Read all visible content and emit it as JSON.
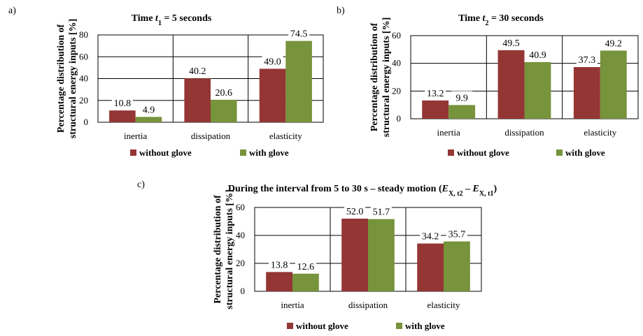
{
  "colors": {
    "without": "#943634",
    "with": "#77933c"
  },
  "chart_data": [
    {
      "type": "bar",
      "panel": "a)",
      "title_parts": [
        {
          "t": "Time "
        },
        {
          "t": "t",
          "i": true
        },
        {
          "t": "1",
          "sub": true
        },
        {
          "t": " = 5 seconds"
        }
      ],
      "ylabel": [
        "Percentage distribution of",
        "structural energy inputs [%]"
      ],
      "categories": [
        "inertia",
        "dissipation",
        "elasticity"
      ],
      "series": [
        {
          "name": "without glove",
          "values": [
            10.8,
            40.2,
            49.0
          ],
          "labels": [
            "10.8",
            "40.2",
            "49.0"
          ]
        },
        {
          "name": "with glove",
          "values": [
            4.9,
            20.6,
            74.5
          ],
          "labels": [
            "4.9",
            "20.6",
            "74.5"
          ]
        }
      ],
      "ylim": [
        0,
        80
      ],
      "yticks": [
        0,
        20,
        40,
        60,
        80
      ],
      "grid": "horizontal",
      "legend": "bottom"
    },
    {
      "type": "bar",
      "panel": "b)",
      "title_parts": [
        {
          "t": "Time "
        },
        {
          "t": "t",
          "i": true
        },
        {
          "t": "2",
          "sub": true
        },
        {
          "t": " = 30 seconds"
        }
      ],
      "ylabel": [
        "Percentage distribution of",
        "structural energy inputs [%]"
      ],
      "categories": [
        "inertia",
        "dissipation",
        "elasticity"
      ],
      "series": [
        {
          "name": "without glove",
          "values": [
            13.2,
            49.5,
            37.3
          ],
          "labels": [
            "13.2",
            "49.5",
            "37.3"
          ]
        },
        {
          "name": "with glove",
          "values": [
            9.9,
            40.9,
            49.2
          ],
          "labels": [
            "9.9",
            "40.9",
            "49.2"
          ]
        }
      ],
      "ylim": [
        0,
        60
      ],
      "yticks": [
        0,
        20,
        40,
        60
      ],
      "grid": "horizontal",
      "legend": "bottom"
    },
    {
      "type": "bar",
      "panel": "c)",
      "title_parts": [
        {
          "t": "During the interval from 5 to 30 s – steady motion ("
        },
        {
          "t": "E",
          "i": true
        },
        {
          "t": "X, t2",
          "sub": true
        },
        {
          "t": " – "
        },
        {
          "t": "E",
          "i": true
        },
        {
          "t": "X, t1",
          "sub": true
        },
        {
          "t": ")"
        }
      ],
      "ylabel": [
        "Percentage distribution of",
        "structural energy inputs [%]"
      ],
      "categories": [
        "inertia",
        "dissipation",
        "elasticity"
      ],
      "series": [
        {
          "name": "without glove",
          "values": [
            13.8,
            52.0,
            34.2
          ],
          "labels": [
            "13.8",
            "52.0",
            "34.2"
          ]
        },
        {
          "name": "with glove",
          "values": [
            12.6,
            51.7,
            35.7
          ],
          "labels": [
            "12.6",
            "51.7",
            "35.7"
          ]
        }
      ],
      "ylim": [
        0,
        60
      ],
      "yticks": [
        0,
        20,
        40,
        60
      ],
      "grid": "horizontal",
      "legend": "bottom"
    }
  ]
}
